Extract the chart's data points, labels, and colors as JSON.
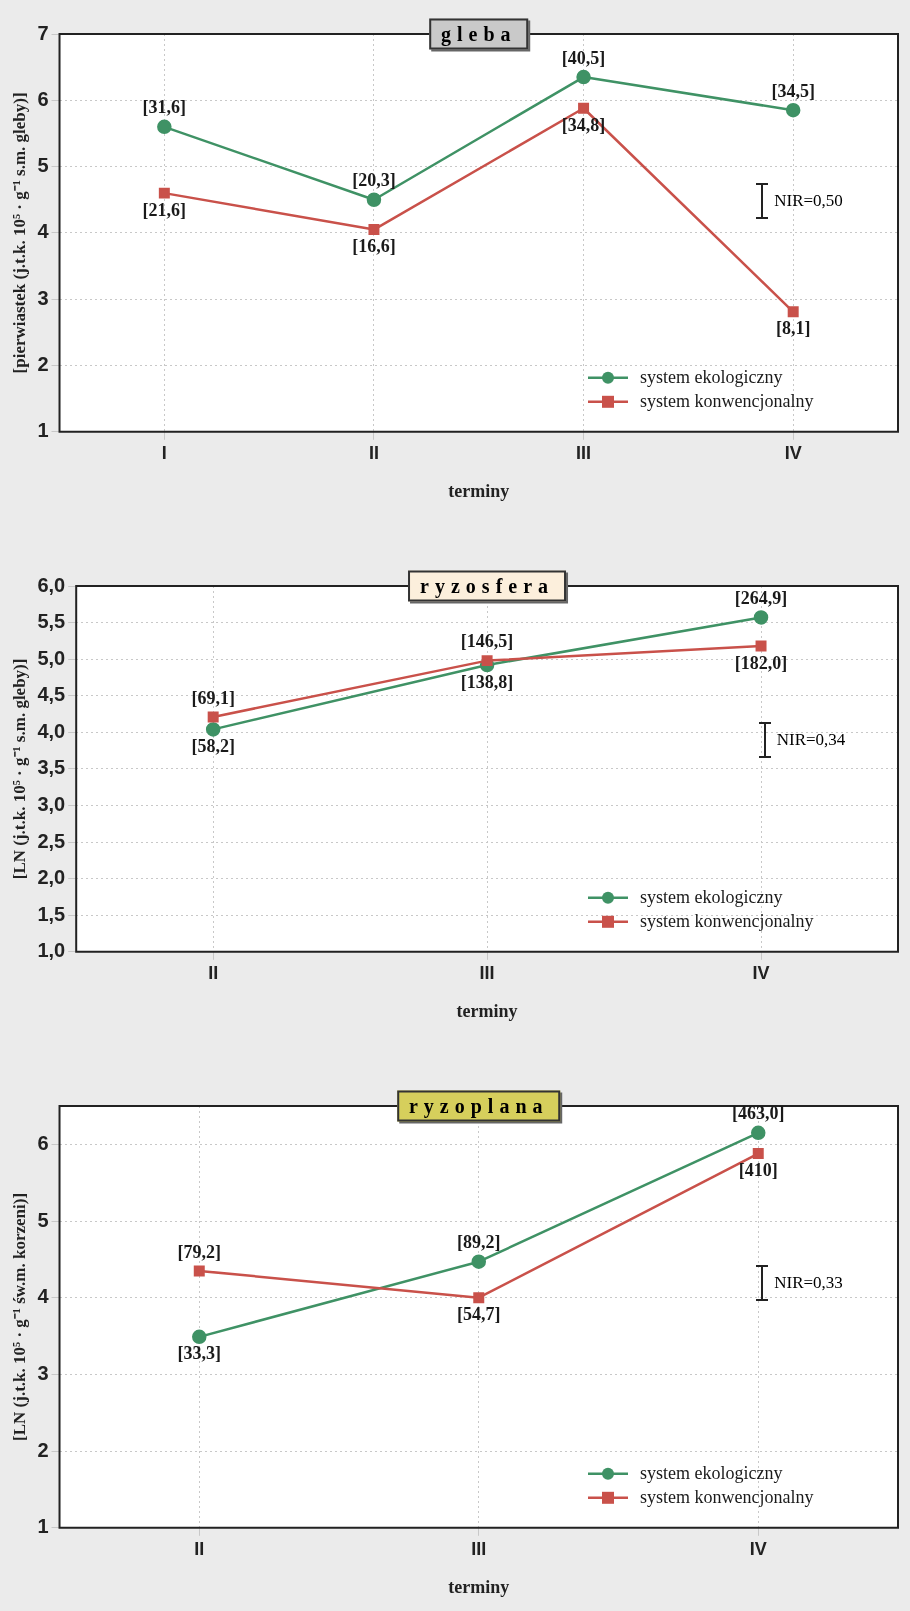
{
  "chart_data": [
    {
      "type": "line",
      "title": "gleba",
      "xlabel": "terminy",
      "ylabel": "[pierwiastek (j.t.k. 10⁵ · g⁻¹ s.m. gleby)]",
      "categories": [
        "I",
        "II",
        "III",
        "IV"
      ],
      "series": [
        {
          "name": "system ekologiczny",
          "color": "#3f9265",
          "marker": "circle",
          "values": [
            5.6,
            4.5,
            6.35,
            5.85
          ]
        },
        {
          "name": "system konwencjonalny",
          "color": "#c9514a",
          "marker": "square",
          "values": [
            4.6,
            4.05,
            5.88,
            2.81
          ]
        }
      ],
      "ylim": [
        1,
        7
      ],
      "yticks": [
        1,
        2,
        3,
        4,
        5,
        6,
        7
      ],
      "grid": true,
      "legend": "bottom right",
      "line_style": "solid",
      "annotations": [
        "NIR=0,50",
        {
          "text": "[31,6]",
          "x": "I",
          "y": 5.6
        },
        {
          "text": "[20,3]",
          "x": "II",
          "y": 4.5
        },
        {
          "text": "[40,5]",
          "x": "III",
          "y": 6.35
        },
        {
          "text": "[34,5]",
          "x": "IV",
          "y": 5.85
        },
        {
          "text": "[21,6]",
          "x": "I",
          "y": 4.6
        },
        {
          "text": "[16,6]",
          "x": "II",
          "y": 4.05
        },
        {
          "text": "[34,8]",
          "x": "III",
          "y": 5.88
        },
        {
          "text": "[8,1]",
          "x": "IV",
          "y": 2.81
        }
      ]
    },
    {
      "type": "line",
      "title": "ryzosfera",
      "xlabel": "terminy",
      "ylabel": "[LN (j.t.k. 10⁵ · g⁻¹ s.m. gleby)]",
      "categories": [
        "II",
        "III",
        "IV"
      ],
      "series": [
        {
          "name": "system ekologiczny",
          "color": "#3f9265",
          "marker": "circle",
          "values": [
            4.04,
            4.92,
            5.57
          ]
        },
        {
          "name": "system konwencjonalny",
          "color": "#c9514a",
          "marker": "square",
          "values": [
            4.21,
            4.98,
            5.18
          ]
        }
      ],
      "ylim": [
        1,
        6
      ],
      "yticks": [
        {
          "value": 1,
          "label": "1,0"
        },
        {
          "value": 1.5,
          "label": "1,5"
        },
        {
          "value": 2,
          "label": "2,0"
        },
        {
          "value": 2.5,
          "label": "2,5"
        },
        {
          "value": 3,
          "label": "3,0"
        },
        {
          "value": 3.5,
          "label": "3,5"
        },
        {
          "value": 4,
          "label": "4,0"
        },
        {
          "value": 4.5,
          "label": "4,5"
        },
        {
          "value": 5,
          "label": "5,0"
        },
        {
          "value": 5.5,
          "label": "5,5"
        },
        {
          "value": 6,
          "label": "6,0"
        }
      ],
      "grid": true,
      "legend": "bottom right",
      "line_style": "solid",
      "annotations": [
        "NIR=0,34",
        {
          "text": "[58,2]",
          "x": "II",
          "y": 4.04
        },
        {
          "text": "[138,8]",
          "x": "III",
          "y": 4.92
        },
        {
          "text": "[264,9]",
          "x": "IV",
          "y": 5.57
        },
        {
          "text": "[69,1]",
          "x": "II",
          "y": 4.21
        },
        {
          "text": "[146,5]",
          "x": "III",
          "y": 4.98
        },
        {
          "text": "[182,0]",
          "x": "IV",
          "y": 5.18
        }
      ]
    },
    {
      "type": "line",
      "title": "ryzoplana",
      "xlabel": "terminy",
      "ylabel": "[LN (j.t.k. 10⁵ · g⁻¹ św.m. korzeni)]",
      "categories": [
        "II",
        "III",
        "IV"
      ],
      "series": [
        {
          "name": "system ekologiczny",
          "color": "#3f9265",
          "marker": "circle",
          "values": [
            3.49,
            4.47,
            6.15
          ]
        },
        {
          "name": "system konwencjonalny",
          "color": "#c9514a",
          "marker": "square",
          "values": [
            4.35,
            4.0,
            5.88
          ]
        }
      ],
      "ylim": [
        1,
        6.5
      ],
      "yticks": [
        1,
        2,
        3,
        4,
        5,
        6
      ],
      "grid": true,
      "legend": "bottom right",
      "line_style": "solid",
      "annotations": [
        "NIR=0,33",
        {
          "text": "[33,3]",
          "x": "II",
          "y": 3.49
        },
        {
          "text": "[89,2]",
          "x": "III",
          "y": 4.47
        },
        {
          "text": "[463,0]",
          "x": "IV",
          "y": 6.15
        },
        {
          "text": "[79,2]",
          "x": "II",
          "y": 4.35
        },
        {
          "text": "[54,7]",
          "x": "III",
          "y": 4.0
        },
        {
          "text": "[410]",
          "x": "IV",
          "y": 5.88
        }
      ]
    }
  ]
}
